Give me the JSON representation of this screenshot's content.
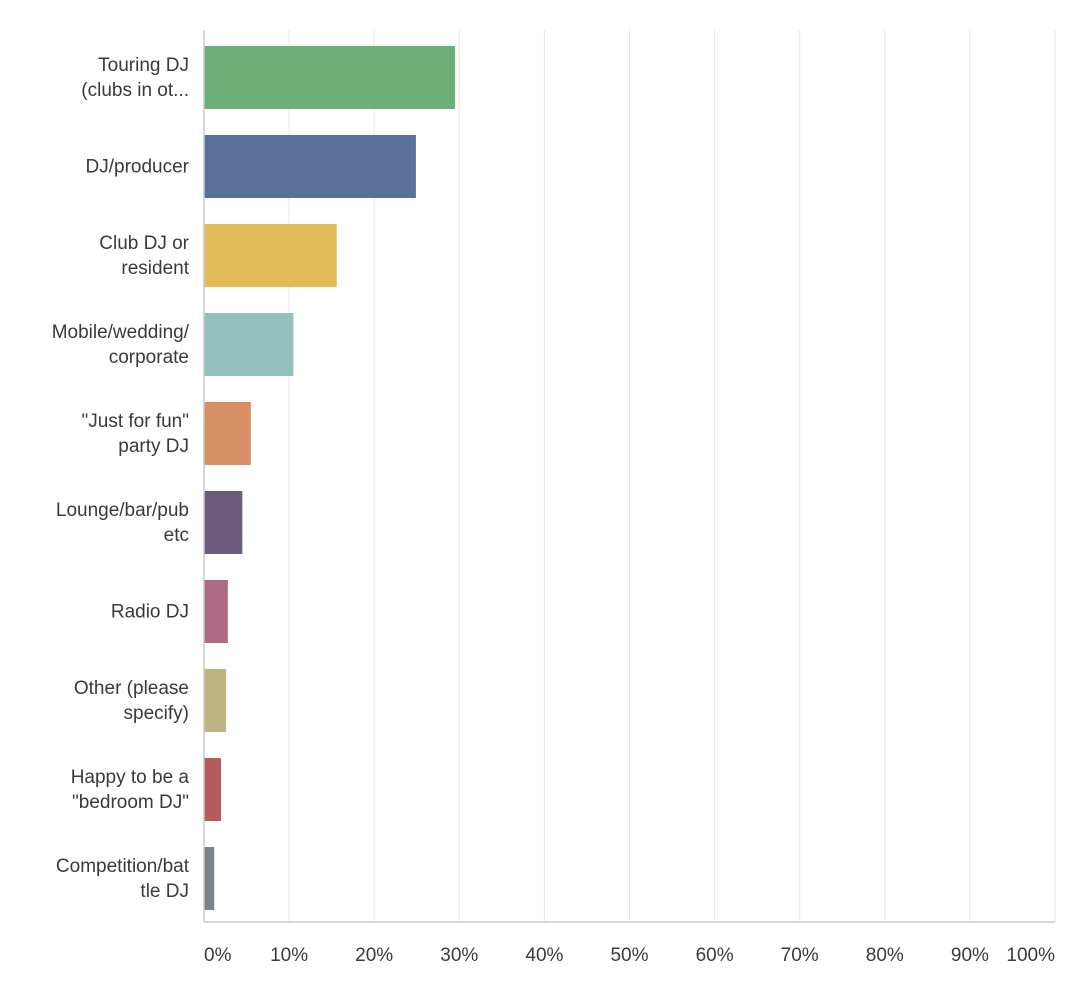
{
  "chart_data": {
    "type": "bar",
    "orientation": "horizontal",
    "categories": [
      [
        "Touring DJ",
        "(clubs in ot..."
      ],
      [
        "DJ/producer"
      ],
      [
        "Club DJ or",
        "resident"
      ],
      [
        "Mobile/wedding/",
        "corporate"
      ],
      [
        "\"Just for fun\"",
        "party DJ"
      ],
      [
        "Lounge/bar/pub",
        "etc"
      ],
      [
        "Radio DJ"
      ],
      [
        "Other (please",
        "specify)"
      ],
      [
        "Happy to be a",
        "\"bedroom DJ\""
      ],
      [
        "Competition/bat",
        "tle DJ"
      ]
    ],
    "values": [
      29.5,
      24.9,
      15.6,
      10.5,
      5.5,
      4.5,
      2.8,
      2.6,
      2.0,
      1.2
    ],
    "colors": [
      "#6daf78",
      "#5b6f9b",
      "#e1bb57",
      "#93bfbd",
      "#d98f64",
      "#6c5b7b",
      "#ad6a84",
      "#bcb482",
      "#b75a5e",
      "#7c8285"
    ],
    "xticks": [
      "0%",
      "10%",
      "20%",
      "30%",
      "40%",
      "50%",
      "60%",
      "70%",
      "80%",
      "90%",
      "100%"
    ],
    "xlim": [
      0,
      100
    ],
    "grid": true,
    "title": "",
    "xlabel": "",
    "ylabel": ""
  }
}
